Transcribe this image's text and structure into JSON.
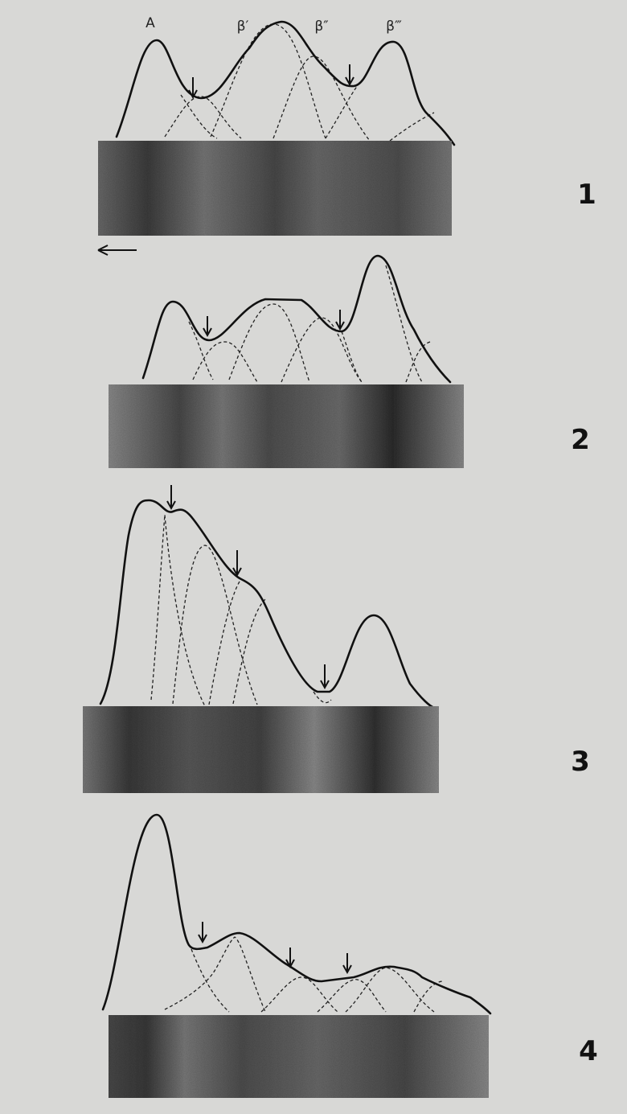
{
  "header_labels": [
    "A",
    "β′",
    "β″",
    "β‴"
  ],
  "panels": [
    {
      "label": "1"
    },
    {
      "label": "2"
    },
    {
      "label": "3"
    },
    {
      "label": "4"
    }
  ]
}
